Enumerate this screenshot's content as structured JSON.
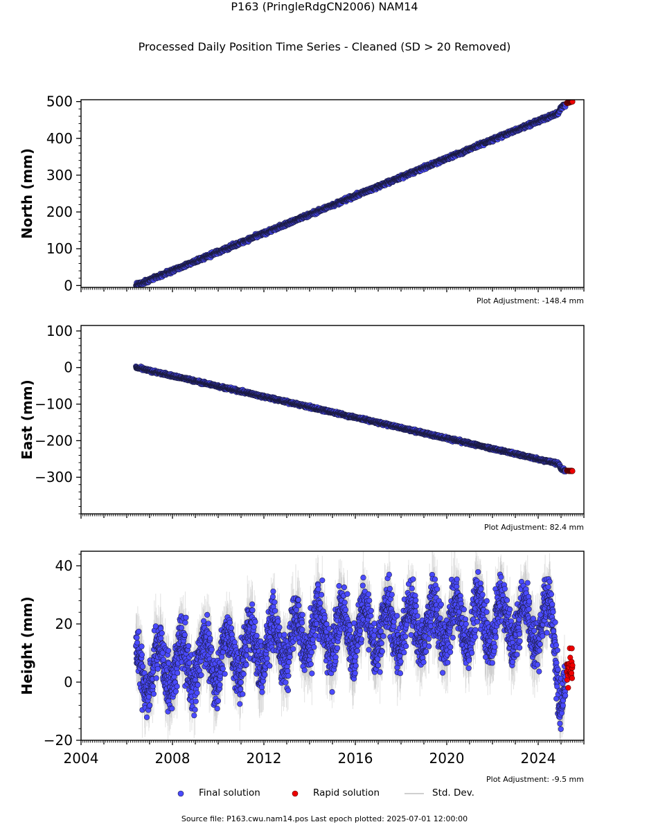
{
  "title": "P163 (PringleRdgCN2006) NAM14",
  "subtitle": "Processed Daily Position Time Series - Cleaned (SD > 20 Removed)",
  "footer": "Source file: P163.cwu.nam14.pos  Last epoch plotted: 2025-07-01 12:00:00",
  "colors": {
    "final": "#4a4aff",
    "final_edge": "#1a1a3a",
    "rapid": "#ee0000",
    "stddev": "#bfbfbf"
  },
  "legend": {
    "final": "Final solution",
    "rapid": "Rapid solution",
    "stddev": "Std. Dev."
  },
  "chart_data": [
    {
      "type": "scatter",
      "ylabel": "North (mm)",
      "adjustment": "Plot Adjustment: -148.4 mm",
      "xlim": [
        2004.0,
        2026.0
      ],
      "ylim": [
        -5,
        505
      ],
      "yticks": [
        0,
        100,
        200,
        300,
        400,
        500
      ],
      "ytick_labels": [
        "0",
        "100",
        "200",
        "300",
        "400",
        "500"
      ],
      "final_trend": [
        [
          2006.4,
          0
        ],
        [
          2024.9,
          470
        ],
        [
          2025.0,
          484
        ],
        [
          2025.2,
          492
        ]
      ],
      "rapid_trend": [
        [
          2025.25,
          496
        ],
        [
          2025.5,
          500
        ]
      ],
      "noise_mm": 2.5,
      "show_xtick_labels": false
    },
    {
      "type": "scatter",
      "ylabel": "East (mm)",
      "adjustment": "Plot Adjustment: 82.4 mm",
      "xlim": [
        2004.0,
        2026.0
      ],
      "ylim": [
        -400,
        115
      ],
      "yticks": [
        -300,
        -200,
        -100,
        0,
        100
      ],
      "ytick_labels": [
        "−300",
        "−200",
        "−100",
        "0",
        "100"
      ],
      "final_trend": [
        [
          2006.4,
          0
        ],
        [
          2024.9,
          -263
        ],
        [
          2025.0,
          -277
        ],
        [
          2025.2,
          -282
        ]
      ],
      "rapid_trend": [
        [
          2025.25,
          -282
        ],
        [
          2025.5,
          -283
        ]
      ],
      "noise_mm": 2.0,
      "show_xtick_labels": false
    },
    {
      "type": "scatter",
      "ylabel": "Height (mm)",
      "adjustment": "Plot Adjustment: -9.5 mm",
      "xlim": [
        2004.0,
        2026.0
      ],
      "ylim": [
        -20,
        45
      ],
      "yticks": [
        -20,
        0,
        20,
        40
      ],
      "ytick_labels": [
        "−20",
        "0",
        "20",
        "40"
      ],
      "xticks": [
        2004,
        2008,
        2012,
        2016,
        2020,
        2024
      ],
      "xtick_labels": [
        "2004",
        "2008",
        "2012",
        "2016",
        "2020",
        "2024"
      ],
      "final_trend": [
        [
          2006.4,
          4
        ],
        [
          2010,
          8
        ],
        [
          2014,
          17
        ],
        [
          2018,
          19
        ],
        [
          2022,
          21
        ],
        [
          2024.7,
          20
        ],
        [
          2024.9,
          0
        ],
        [
          2025.2,
          -2
        ]
      ],
      "rapid_trend": [
        [
          2025.25,
          3
        ],
        [
          2025.5,
          6
        ]
      ],
      "seasonal_amp_mm": 8,
      "noise_mm": 4.5,
      "show_xtick_labels": true
    }
  ]
}
